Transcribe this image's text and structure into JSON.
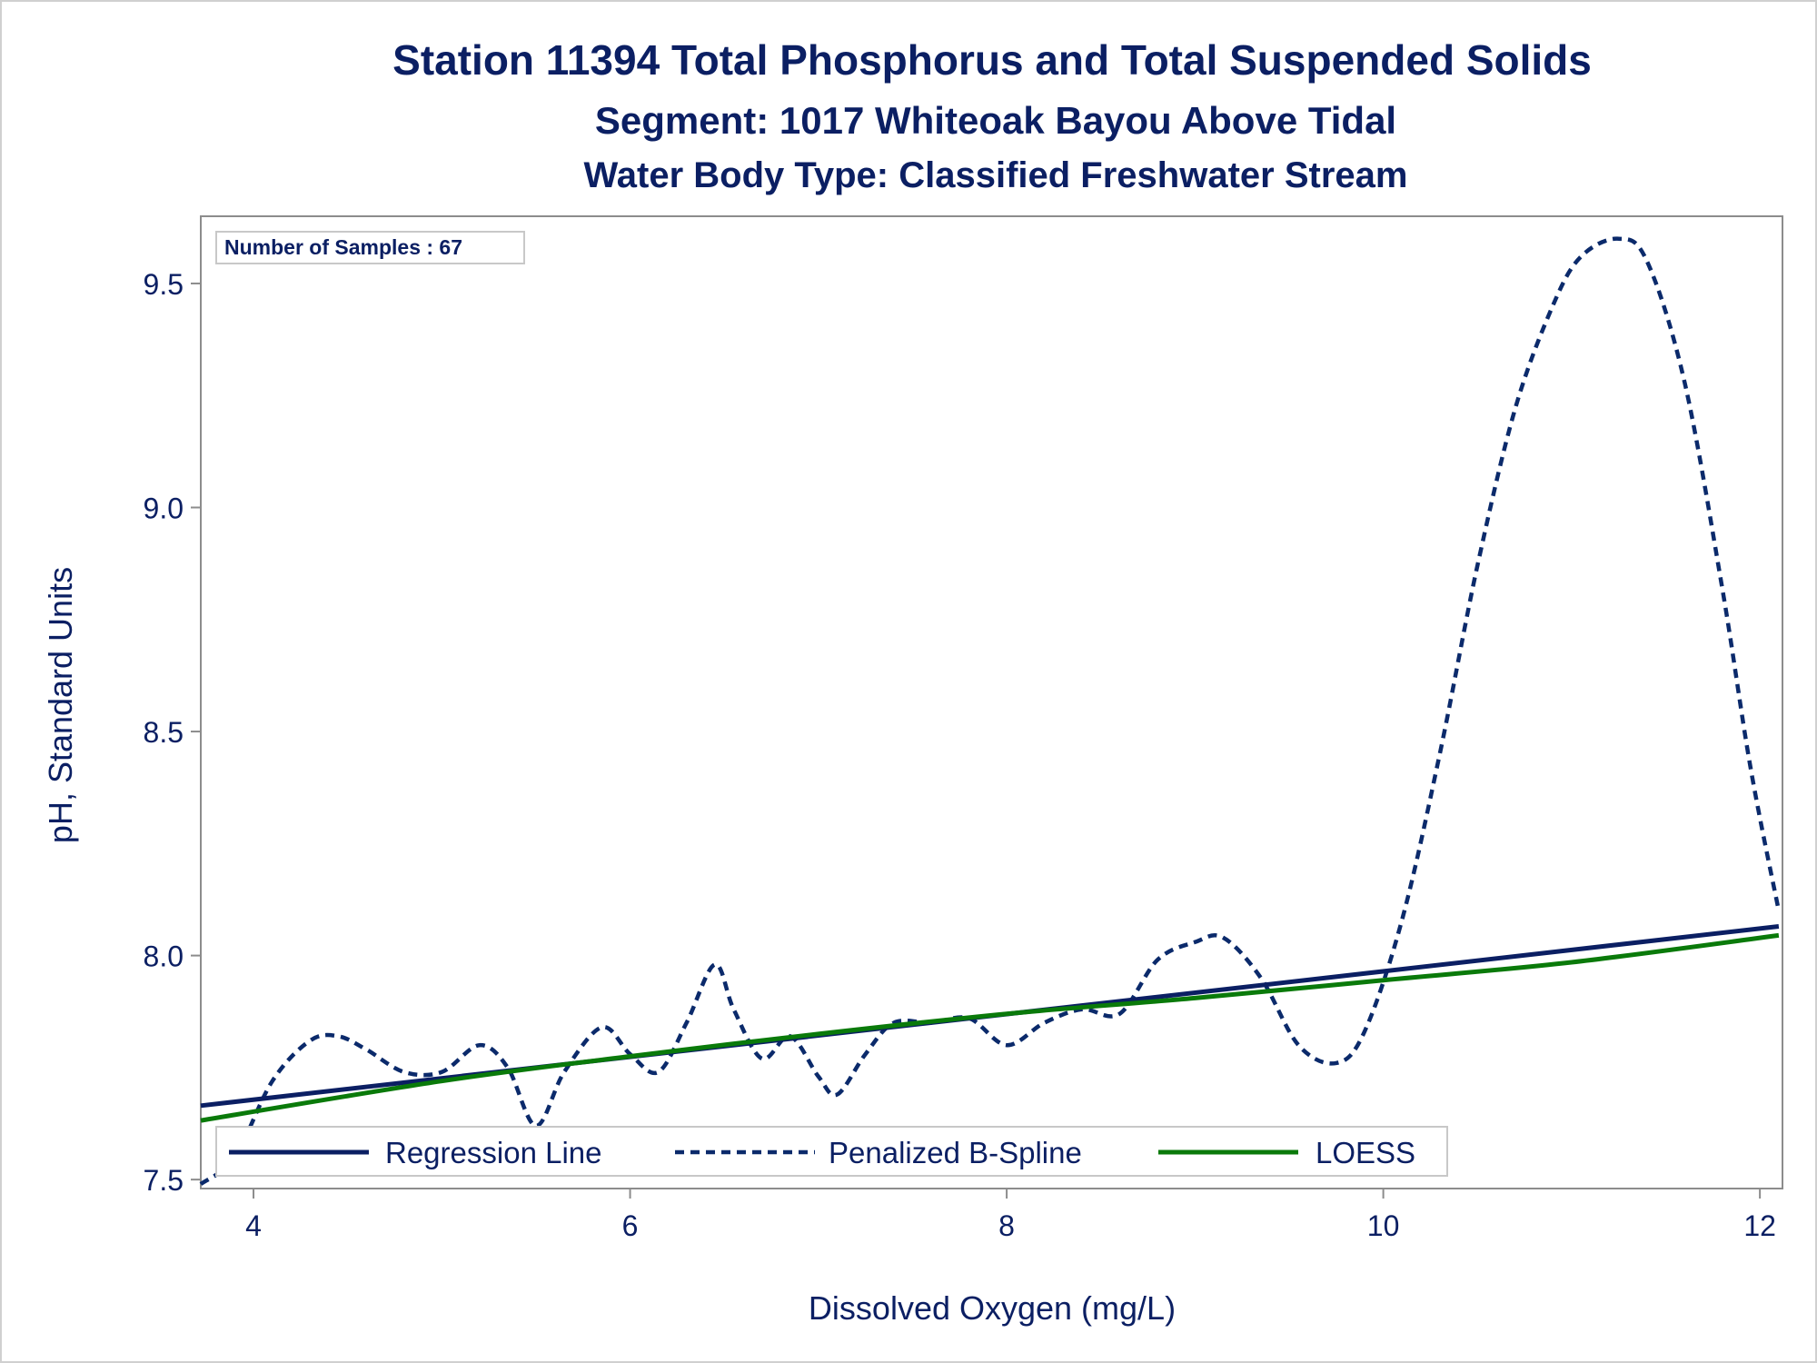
{
  "chart_data": {
    "type": "line",
    "title": "Station 11394  Total Phosphorus and Total Suspended Solids",
    "subtitle": "Segment: 1017  Whiteoak Bayou Above Tidal",
    "subtitle2": "Water Body Type: Classified Freshwater Stream",
    "xlabel": "Dissolved Oxygen (mg/L)",
    "ylabel": "pH, Standard Units",
    "xlim": [
      3.72,
      12.12
    ],
    "ylim": [
      7.48,
      9.65
    ],
    "xticks": [
      4,
      6,
      8,
      10,
      12
    ],
    "yticks": [
      7.5,
      8.0,
      8.5,
      9.0,
      9.5
    ],
    "ytick_labels": [
      "7.5",
      "8.0",
      "8.5",
      "9.0",
      "9.5"
    ],
    "grid": false,
    "legend_position": "bottom-left inside",
    "annotation": "Number of Samples : 67",
    "series": [
      {
        "name": "Regression Line",
        "style": "solid",
        "color": "#0b1f63",
        "x": [
          3.72,
          12.1
        ],
        "y": [
          7.665,
          8.065
        ]
      },
      {
        "name": "Penalized B-Spline",
        "style": "dashed",
        "color": "#0b2a6b",
        "x": [
          3.72,
          3.9,
          4.1,
          4.3,
          4.45,
          4.6,
          4.8,
          5.0,
          5.2,
          5.35,
          5.5,
          5.65,
          5.85,
          6.0,
          6.15,
          6.3,
          6.45,
          6.55,
          6.7,
          6.85,
          7.0,
          7.1,
          7.25,
          7.4,
          7.6,
          7.8,
          8.0,
          8.2,
          8.4,
          8.6,
          8.8,
          9.0,
          9.15,
          9.35,
          9.55,
          9.75,
          9.9,
          10.1,
          10.3,
          10.5,
          10.7,
          10.9,
          11.05,
          11.25,
          11.4,
          11.6,
          11.8,
          11.95,
          12.1
        ],
        "y": [
          7.49,
          7.55,
          7.72,
          7.81,
          7.82,
          7.79,
          7.74,
          7.74,
          7.8,
          7.75,
          7.62,
          7.74,
          7.84,
          7.78,
          7.74,
          7.85,
          7.98,
          7.88,
          7.77,
          7.82,
          7.73,
          7.69,
          7.78,
          7.85,
          7.85,
          7.86,
          7.8,
          7.85,
          7.88,
          7.87,
          7.99,
          8.03,
          8.04,
          7.95,
          7.8,
          7.76,
          7.83,
          8.08,
          8.45,
          8.87,
          9.22,
          9.45,
          9.56,
          9.6,
          9.55,
          9.28,
          8.82,
          8.42,
          8.1
        ]
      },
      {
        "name": "LOESS",
        "style": "solid",
        "color": "#0a7a0a",
        "x": [
          3.72,
          5.0,
          6.0,
          7.0,
          8.0,
          9.0,
          10.0,
          11.0,
          12.1
        ],
        "y": [
          7.632,
          7.72,
          7.775,
          7.825,
          7.87,
          7.905,
          7.945,
          7.985,
          8.045
        ]
      }
    ]
  }
}
